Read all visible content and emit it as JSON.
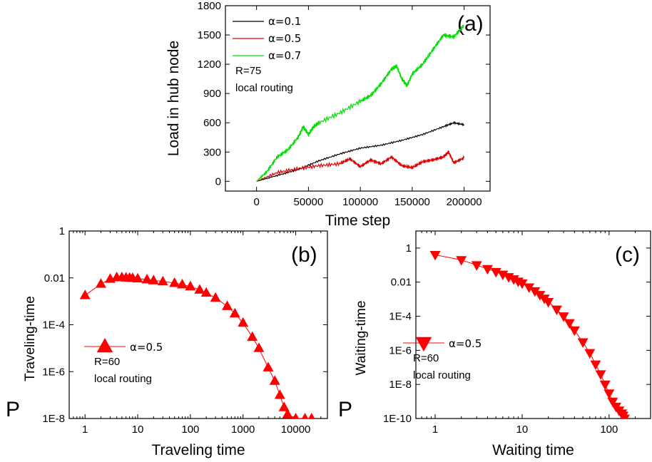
{
  "chart_data": [
    {
      "panel": "(a)",
      "type": "line",
      "xlabel": "Time step",
      "ylabel": "Load in hub node",
      "xlim": [
        -30000,
        225000
      ],
      "ylim": [
        -100,
        1800
      ],
      "xticks": [
        0,
        50000,
        100000,
        150000,
        200000
      ],
      "yticks": [
        0,
        300,
        600,
        900,
        1200,
        1500,
        1800
      ],
      "legend_position": "top-left",
      "notes": [
        "R=75",
        "local routing"
      ],
      "series": [
        {
          "name": "α=0.1",
          "color": "#000000",
          "x": [
            0,
            20000,
            40000,
            60000,
            80000,
            100000,
            120000,
            140000,
            160000,
            180000,
            190000,
            200000
          ],
          "y": [
            0,
            60,
            120,
            210,
            280,
            340,
            370,
            420,
            480,
            560,
            600,
            580
          ]
        },
        {
          "name": "α=0.5",
          "color": "#e00000",
          "x": [
            0,
            20000,
            40000,
            60000,
            80000,
            90000,
            100000,
            110000,
            120000,
            130000,
            140000,
            150000,
            160000,
            170000,
            180000,
            185000,
            190000,
            200000
          ],
          "y": [
            0,
            90,
            130,
            160,
            180,
            230,
            150,
            220,
            180,
            250,
            160,
            140,
            200,
            220,
            250,
            300,
            190,
            240
          ]
        },
        {
          "name": "α=0.7",
          "color": "#00dd00",
          "x": [
            0,
            10000,
            20000,
            30000,
            40000,
            45000,
            50000,
            55000,
            60000,
            80000,
            100000,
            110000,
            120000,
            130000,
            135000,
            140000,
            145000,
            150000,
            160000,
            170000,
            180000,
            190000,
            200000
          ],
          "y": [
            0,
            100,
            250,
            320,
            450,
            560,
            480,
            560,
            600,
            700,
            820,
            880,
            1000,
            1150,
            1180,
            1050,
            980,
            1100,
            1200,
            1350,
            1500,
            1480,
            1600
          ]
        }
      ]
    },
    {
      "panel": "(b)",
      "type": "scatter",
      "xlabel": "Traveling time",
      "ylabel_main": "P",
      "ylabel_sub": "Traveling-time",
      "xscale": "log",
      "yscale": "log",
      "xlim": [
        0.5,
        40000
      ],
      "ylim": [
        1e-08,
        1
      ],
      "xticks": [
        1,
        10,
        100,
        1000,
        10000
      ],
      "xtick_labels": [
        "1",
        "10",
        "100",
        "1000",
        "10000"
      ],
      "yticks": [
        1e-08,
        1e-06,
        0.0001,
        0.01,
        1
      ],
      "ytick_labels": [
        "1E-8",
        "1E-6",
        "1E-4",
        "0.01",
        "1"
      ],
      "marker": "triangle-up",
      "color": "#ff0000",
      "legend_position": "bottom-left",
      "notes": [
        "R=60",
        "local routing"
      ],
      "series": [
        {
          "name": "α=0.5",
          "x": [
            1,
            2,
            3,
            4,
            5,
            6,
            7,
            8,
            10,
            15,
            20,
            30,
            50,
            70,
            100,
            150,
            200,
            300,
            500,
            700,
            1000,
            1500,
            2000,
            3000,
            4000,
            5000,
            6000,
            7000,
            10000,
            15000,
            20000
          ],
          "y": [
            0.0018,
            0.0055,
            0.009,
            0.0105,
            0.0105,
            0.0102,
            0.01,
            0.0098,
            0.0093,
            0.0085,
            0.0078,
            0.007,
            0.006,
            0.0052,
            0.0043,
            0.0031,
            0.0023,
            0.0014,
            0.00062,
            0.0003,
            0.00012,
            3e-05,
            1e-05,
            1.5e-06,
            4e-07,
            1e-07,
            3e-08,
            1.5e-08,
            1e-08,
            1e-08,
            1e-08
          ]
        }
      ]
    },
    {
      "panel": "(c)",
      "type": "scatter",
      "xlabel": "Waiting time",
      "ylabel_main": "P",
      "ylabel_sub": "Waiting-time",
      "xscale": "log",
      "yscale": "log",
      "xlim": [
        0.6,
        300
      ],
      "ylim": [
        1e-10,
        10
      ],
      "xticks": [
        1,
        10,
        100
      ],
      "xtick_labels": [
        "1",
        "10",
        "100"
      ],
      "yticks": [
        1e-10,
        1e-08,
        1e-06,
        0.0001,
        0.01,
        1
      ],
      "ytick_labels": [
        "1E-10",
        "1E-8",
        "1E-6",
        "1E-4",
        "0.01",
        "1"
      ],
      "marker": "triangle-down",
      "color": "#ff0000",
      "legend_position": "bottom-left",
      "notes": [
        "R=60",
        "local routing"
      ],
      "series": [
        {
          "name": "α=0.5",
          "x": [
            1,
            2,
            3,
            4,
            5,
            6,
            7,
            8,
            9,
            10,
            12,
            14,
            16,
            18,
            20,
            25,
            30,
            35,
            40,
            50,
            60,
            70,
            80,
            90,
            100,
            110,
            120,
            130,
            140,
            145,
            150
          ],
          "y": [
            0.4,
            0.2,
            0.1,
            0.06,
            0.04,
            0.028,
            0.02,
            0.015,
            0.011,
            0.0085,
            0.005,
            0.003,
            0.0018,
            0.0011,
            0.0007,
            0.00025,
            0.0001,
            4e-05,
            1.5e-05,
            3e-06,
            7e-07,
            1.5e-07,
            4e-08,
            1e-08,
            3e-09,
            1e-09,
            5e-10,
            3e-10,
            2e-10,
            1.5e-10,
            1e-10
          ]
        }
      ]
    }
  ]
}
